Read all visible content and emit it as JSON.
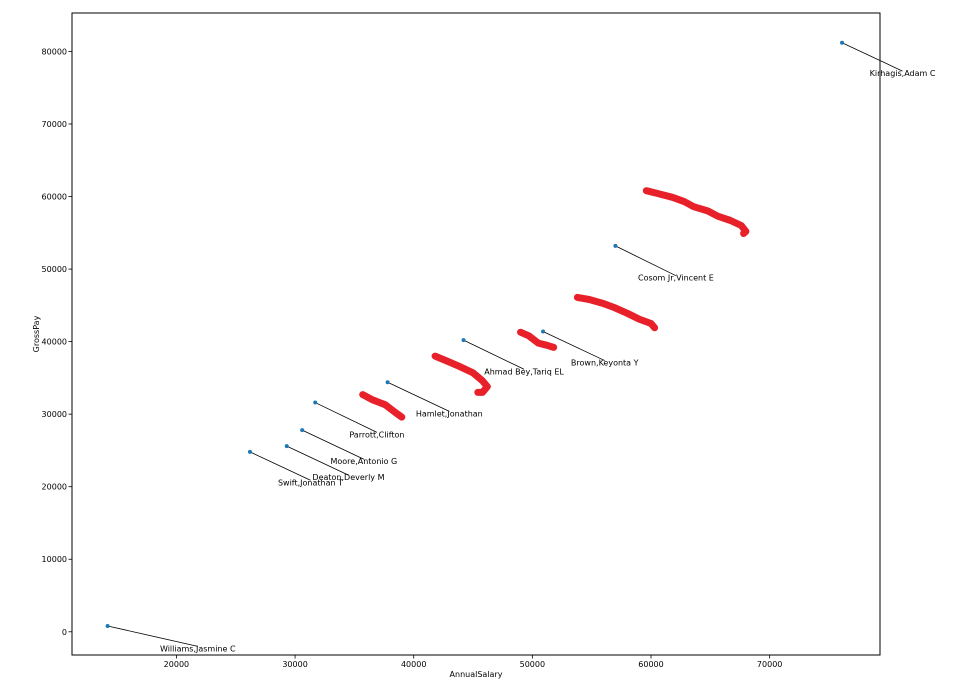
{
  "chart_data": {
    "type": "scatter",
    "xlabel": "AnnualSalary",
    "ylabel": "GrossPay",
    "xlim": [
      11200,
      79300
    ],
    "ylim": [
      -3200,
      85300
    ],
    "xticks": [
      20000,
      30000,
      40000,
      50000,
      60000,
      70000
    ],
    "yticks": [
      0,
      10000,
      20000,
      30000,
      40000,
      50000,
      60000,
      70000,
      80000
    ],
    "grid": false,
    "legend": "none",
    "marker_color": "#1f77b4",
    "points": [
      {
        "name": "Williams,Jasmine C",
        "x": 14200,
        "y": 800,
        "label_x": 21800,
        "label_y": -2700
      },
      {
        "name": "Swift,Jonathan T",
        "x": 26200,
        "y": 24800,
        "label_x": 31300,
        "label_y": 20200
      },
      {
        "name": "Deaton,Deverly M",
        "x": 29300,
        "y": 25600,
        "label_x": 34500,
        "label_y": 20900
      },
      {
        "name": "Moore,Antonio G",
        "x": 30600,
        "y": 27800,
        "label_x": 35800,
        "label_y": 23100
      },
      {
        "name": "Parrott,Clifton",
        "x": 31700,
        "y": 31600,
        "label_x": 36900,
        "label_y": 26800
      },
      {
        "name": "Hamlet,Jonathan",
        "x": 37800,
        "y": 34400,
        "label_x": 43000,
        "label_y": 29700
      },
      {
        "name": "Ahmad Bey,Tariq EL",
        "x": 44200,
        "y": 40200,
        "label_x": 49300,
        "label_y": 35500
      },
      {
        "name": "Brown,Keyonta Y",
        "x": 50900,
        "y": 41400,
        "label_x": 56100,
        "label_y": 36700
      },
      {
        "name": "Cosom Jr,Vincent E",
        "x": 57000,
        "y": 53200,
        "label_x": 62100,
        "label_y": 48400
      },
      {
        "name": "Kirhagis,Adam C",
        "x": 76100,
        "y": 81200,
        "label_x": 81200,
        "label_y": 76600
      }
    ],
    "highlight_strokes": {
      "color": "#e8202a",
      "note_type": "hand-drawn marks",
      "strokes": [
        [
          [
            35700,
            32700
          ],
          [
            36500,
            32000
          ],
          [
            37600,
            31300
          ],
          [
            38400,
            30300
          ],
          [
            39000,
            29600
          ]
        ],
        [
          [
            41800,
            38000
          ],
          [
            42700,
            37400
          ],
          [
            43700,
            36700
          ],
          [
            45000,
            35700
          ],
          [
            45800,
            34600
          ],
          [
            46200,
            33800
          ],
          [
            45800,
            33000
          ],
          [
            45400,
            33000
          ]
        ],
        [
          [
            49000,
            41300
          ],
          [
            49700,
            40800
          ],
          [
            50500,
            39800
          ],
          [
            51200,
            39500
          ],
          [
            51800,
            39200
          ]
        ],
        [
          [
            53800,
            46100
          ],
          [
            54800,
            45800
          ],
          [
            55900,
            45300
          ],
          [
            56900,
            44700
          ],
          [
            58000,
            43900
          ],
          [
            59000,
            43100
          ],
          [
            60000,
            42500
          ],
          [
            60300,
            41900
          ]
        ],
        [
          [
            59600,
            60800
          ],
          [
            60600,
            60400
          ],
          [
            61800,
            59900
          ],
          [
            62800,
            59300
          ],
          [
            63600,
            58600
          ],
          [
            64800,
            58000
          ],
          [
            65600,
            57300
          ],
          [
            66700,
            56700
          ],
          [
            67600,
            56000
          ],
          [
            68000,
            55200
          ],
          [
            67800,
            54900
          ]
        ]
      ]
    }
  }
}
